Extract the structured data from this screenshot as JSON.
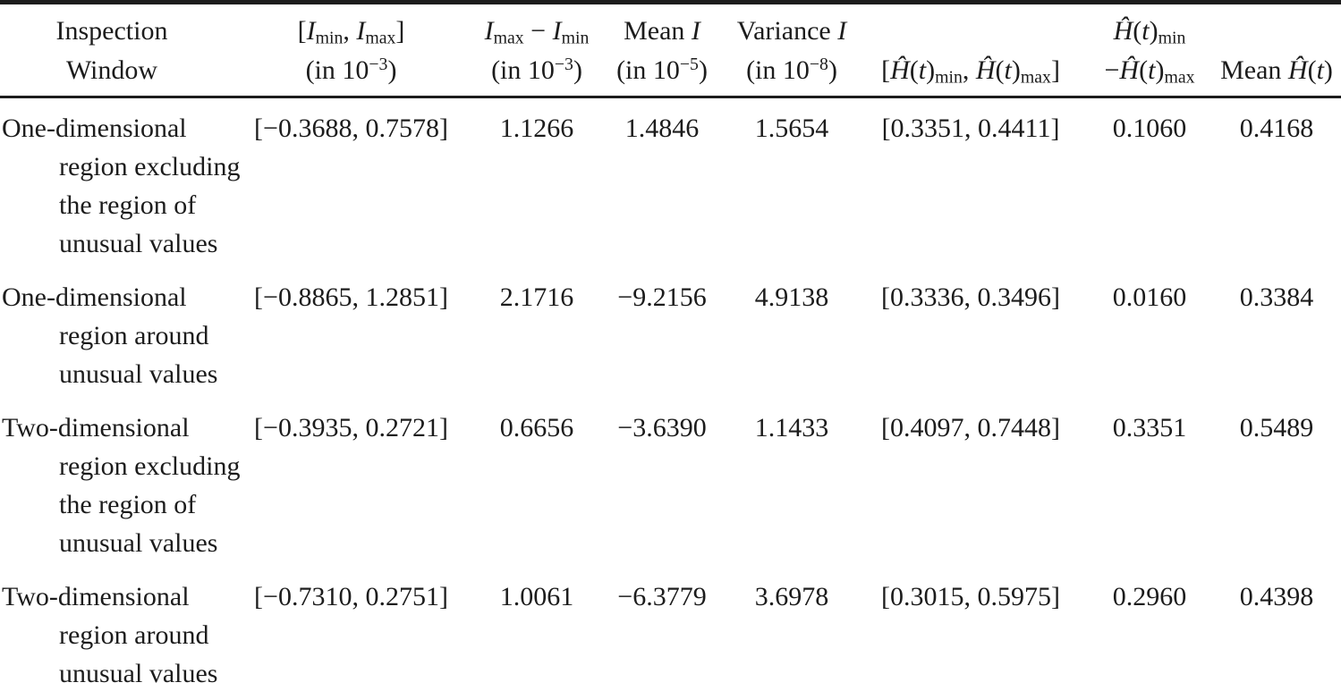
{
  "table": {
    "columns": [
      {
        "id": "window",
        "line1": "Inspection",
        "line2": "Window"
      },
      {
        "id": "i_range",
        "line1": "[*I*_min_, *I*_max_]",
        "line2": "(in 10^−3^)"
      },
      {
        "id": "i_span",
        "line1": "*I*_max_ − *I*_min_",
        "line2": "(in 10^−3^)"
      },
      {
        "id": "mean_i",
        "line1": "Mean *I*",
        "line2": "(in 10^−5^)"
      },
      {
        "id": "variance_i",
        "line1": "Variance *I*",
        "line2": "(in 10^−8^)"
      },
      {
        "id": "h_range",
        "line1": "",
        "line2": "[*Ĥ*(*t*)_min_, *Ĥ*(*t*)_max_]"
      },
      {
        "id": "h_span",
        "line1": "*Ĥ*(*t*)_min_",
        "line2": "−*Ĥ*(*t*)_max_"
      },
      {
        "id": "mean_h",
        "line1": "",
        "line2": "Mean *Ĥ*(*t*)"
      }
    ],
    "rows": [
      {
        "window_lines": [
          "One-dimensional",
          "region excluding",
          "the region of",
          "unusual values"
        ],
        "i_range": "[−0.3688, 0.7578]",
        "i_span": "1.1266",
        "mean_i": "1.4846",
        "variance_i": "1.5654",
        "h_range": "[0.3351, 0.4411]",
        "h_span": "0.1060",
        "mean_h": "0.4168"
      },
      {
        "window_lines": [
          "One-dimensional",
          "region around",
          "unusual values"
        ],
        "i_range": "[−0.8865, 1.2851]",
        "i_span": "2.1716",
        "mean_i": "−9.2156",
        "variance_i": "4.9138",
        "h_range": "[0.3336, 0.3496]",
        "h_span": "0.0160",
        "mean_h": "0.3384"
      },
      {
        "window_lines": [
          "Two-dimensional",
          "region excluding",
          "the region of",
          "unusual values"
        ],
        "i_range": "[−0.3935, 0.2721]",
        "i_span": "0.6656",
        "mean_i": "−3.6390",
        "variance_i": "1.1433",
        "h_range": "[0.4097, 0.7448]",
        "h_span": "0.3351",
        "mean_h": "0.5489"
      },
      {
        "window_lines": [
          "Two-dimensional",
          "region around",
          "unusual values"
        ],
        "i_range": "[−0.7310, 0.2751]",
        "i_span": "1.0061",
        "mean_i": "−6.3779",
        "variance_i": "3.6978",
        "h_range": "[0.3015, 0.5975]",
        "h_span": "0.2960",
        "mean_h": "0.4398"
      }
    ]
  },
  "colors": {
    "text": "#1c1c1c",
    "rule": "#1c1c1c",
    "background": "#ffffff"
  }
}
